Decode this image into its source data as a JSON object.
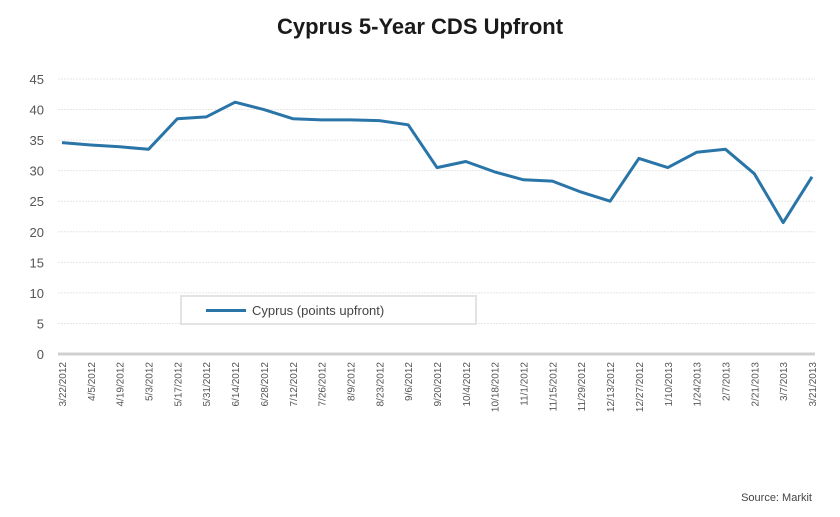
{
  "chart_data": {
    "type": "line",
    "title": "Cyprus 5-Year CDS Upfront",
    "xlabel": "",
    "ylabel": "",
    "ylim": [
      0,
      45
    ],
    "yticks": [
      0,
      5,
      10,
      15,
      20,
      25,
      30,
      35,
      40,
      45
    ],
    "grid": true,
    "legend_position": "inside-lower-left",
    "categories": [
      "3/22/2012",
      "4/5/2012",
      "4/19/2012",
      "5/3/2012",
      "5/17/2012",
      "5/31/2012",
      "6/14/2012",
      "6/28/2012",
      "7/12/2012",
      "7/26/2012",
      "8/9/2012",
      "8/23/2012",
      "9/6/2012",
      "9/20/2012",
      "10/4/2012",
      "10/18/2012",
      "11/1/2012",
      "11/15/2012",
      "11/29/2012",
      "12/13/2012",
      "12/27/2012",
      "1/10/2013",
      "1/24/2013",
      "2/7/2013",
      "2/21/2013",
      "3/7/2013",
      "3/21/2013"
    ],
    "series": [
      {
        "name": "Cyprus (points upfront)",
        "color": "#2a75a8",
        "values": [
          34.6,
          34.2,
          33.9,
          33.5,
          38.5,
          38.8,
          41.2,
          40.0,
          38.5,
          38.3,
          38.3,
          38.2,
          37.5,
          30.5,
          31.5,
          29.8,
          28.5,
          28.3,
          26.5,
          25.0,
          32.0,
          30.5,
          33.0,
          33.5,
          29.5,
          21.5,
          29.0
        ]
      }
    ]
  },
  "title": "Cyprus 5-Year CDS Upfront",
  "legend": {
    "label": "Cyprus (points upfront)"
  },
  "source": "Source: Markit"
}
